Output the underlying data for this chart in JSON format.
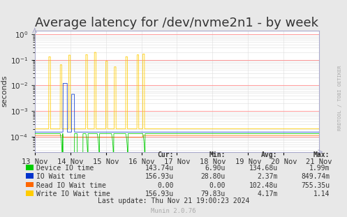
{
  "title": "Average latency for /dev/nvme2n1 - by week",
  "ylabel": "seconds",
  "xlabel_ticks": [
    "13 Nov",
    "14 Nov",
    "15 Nov",
    "16 Nov",
    "17 Nov",
    "18 Nov",
    "19 Nov",
    "20 Nov",
    "21 Nov"
  ],
  "ylim_log": [
    -4.5,
    0
  ],
  "background_color": "#e8e8e8",
  "plot_bg_color": "#ffffff",
  "grid_color_major": "#ff9999",
  "grid_color_minor": "#dddddd",
  "title_fontsize": 13,
  "legend": [
    {
      "label": "Device IO time",
      "color": "#00cc00"
    },
    {
      "label": "IO Wait time",
      "color": "#0033cc"
    },
    {
      "label": "Read IO Wait time",
      "color": "#ff6600"
    },
    {
      "label": "Write IO Wait time",
      "color": "#ffcc00"
    }
  ],
  "stats": {
    "headers": [
      "Cur:",
      "Min:",
      "Avg:",
      "Max:"
    ],
    "rows": [
      [
        "Device IO time",
        "143.74u",
        "6.90u",
        "134.68u",
        "1.99m"
      ],
      [
        "IO Wait time",
        "156.93u",
        "28.80u",
        "2.37m",
        "849.74m"
      ],
      [
        "Read IO Wait time",
        "0.00",
        "0.00",
        "102.48u",
        "755.35u"
      ],
      [
        "Write IO Wait time",
        "156.93u",
        "79.83u",
        "4.17m",
        "1.14"
      ]
    ]
  },
  "footer": "Last update: Thu Nov 21 19:00:23 2024",
  "munin_label": "Munin 2.0.76",
  "rrdtool_label": "RRDTOOL / TOBI OETIKER"
}
